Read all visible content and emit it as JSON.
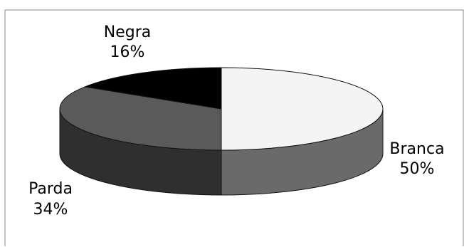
{
  "chart_data": {
    "type": "pie",
    "style": "3d",
    "title": "",
    "categories": [
      "Branca",
      "Parda",
      "Negra"
    ],
    "values": [
      50,
      34,
      16
    ],
    "value_labels": [
      "50%",
      "34%",
      "16%"
    ],
    "colors": {
      "Branca": {
        "top": "#f4f4f4",
        "side": "#6a6a6a"
      },
      "Parda": {
        "top": "#5a5a5a",
        "side": "#2f2f2f"
      },
      "Negra": {
        "top": "#000000",
        "side": "#000000"
      }
    },
    "legend": "none",
    "grid": false
  }
}
